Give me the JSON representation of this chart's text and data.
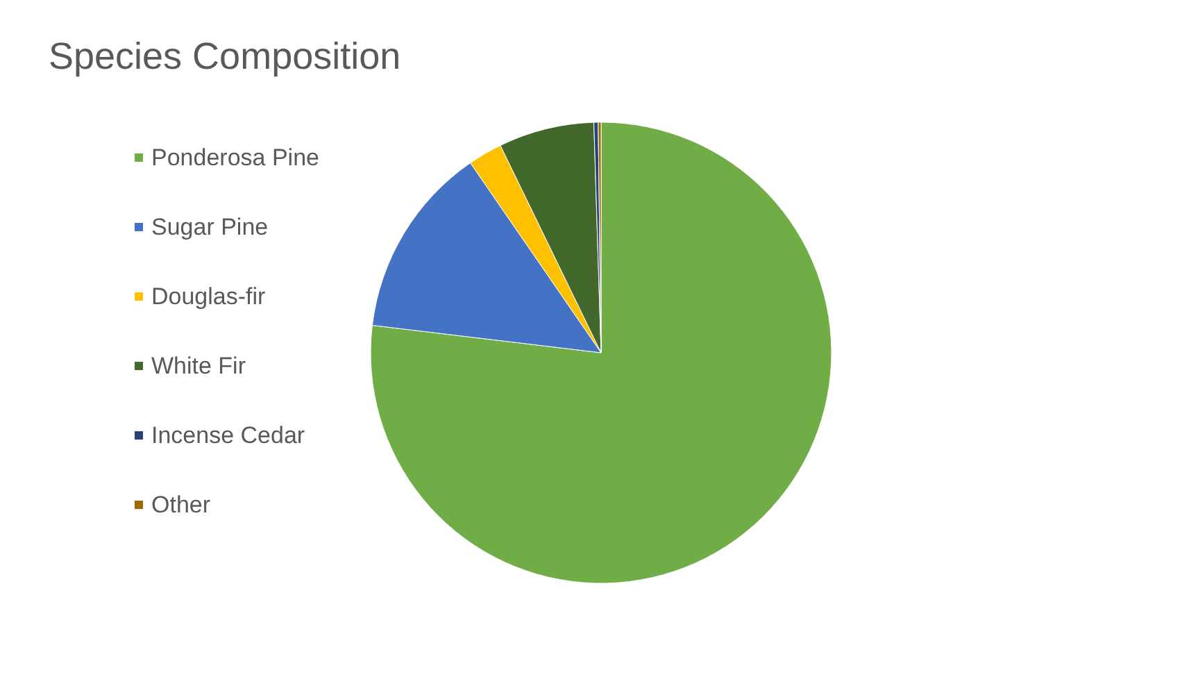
{
  "chart_data": {
    "type": "pie",
    "title": "Species Composition",
    "categories": [
      "Ponderosa Pine",
      "Sugar Pine",
      "Douglas-fir",
      "White Fir",
      "Incense Cedar",
      "Other"
    ],
    "values": [
      76.9,
      13.5,
      2.4,
      6.7,
      0.3,
      0.2
    ],
    "colors": [
      "#70ad47",
      "#4472c4",
      "#ffc000",
      "#43682b",
      "#264478",
      "#9e6a03"
    ],
    "legend": "left"
  }
}
